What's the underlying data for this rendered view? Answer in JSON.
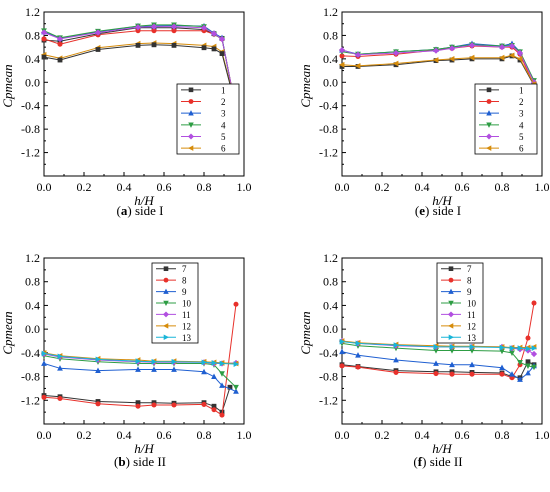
{
  "chart_data": [
    {
      "type": "line",
      "caption_letter": "a",
      "caption_text": "side I",
      "ylabel": "Cpmean",
      "xlabel": "h/H",
      "xlim": [
        0.0,
        1.0
      ],
      "ylim": [
        -1.6,
        1.2
      ],
      "xticks": [
        "0.0",
        "0.2",
        "0.4",
        "0.6",
        "0.8",
        "1.0"
      ],
      "yticks": [
        "1.2",
        "0.8",
        "0.4",
        "0.0",
        "-0.4",
        "-0.8",
        "-1.2"
      ],
      "legend_position": "right",
      "series": [
        {
          "name": "1",
          "color": "#333333",
          "marker": "square",
          "x": [
            0.0,
            0.08,
            0.27,
            0.47,
            0.55,
            0.65,
            0.8,
            0.85,
            0.89,
            0.96
          ],
          "y": [
            0.72,
            0.7,
            0.83,
            0.93,
            0.93,
            0.93,
            0.9,
            0.83,
            0.75,
            -0.46
          ]
        },
        {
          "name": "2",
          "color": "#e8312b",
          "marker": "circle",
          "x": [
            0.0,
            0.08,
            0.27,
            0.47,
            0.55,
            0.65,
            0.8,
            0.85,
            0.89,
            0.96
          ],
          "y": [
            0.74,
            0.65,
            0.81,
            0.88,
            0.88,
            0.88,
            0.88,
            0.82,
            0.74,
            -0.46
          ]
        },
        {
          "name": "3",
          "color": "#1f5fd1",
          "marker": "triangle-up",
          "x": [
            0.0,
            0.08,
            0.27,
            0.47,
            0.55,
            0.65,
            0.8,
            0.85,
            0.89,
            0.96
          ],
          "y": [
            0.86,
            0.75,
            0.86,
            0.96,
            0.96,
            0.97,
            0.96,
            0.84,
            0.76,
            -0.5
          ]
        },
        {
          "name": "4",
          "color": "#2e9d44",
          "marker": "triangle-down",
          "x": [
            0.0,
            0.08,
            0.27,
            0.47,
            0.55,
            0.65,
            0.8,
            0.85,
            0.89,
            0.96
          ],
          "y": [
            0.88,
            0.76,
            0.87,
            0.96,
            0.98,
            0.98,
            0.95,
            0.82,
            0.74,
            -0.48
          ]
        },
        {
          "name": "5",
          "color": "#b14fe0",
          "marker": "diamond",
          "x": [
            0.0,
            0.08,
            0.27,
            0.47,
            0.55,
            0.65,
            0.8,
            0.85,
            0.89,
            0.96
          ],
          "y": [
            0.85,
            0.74,
            0.85,
            0.94,
            0.95,
            0.95,
            0.93,
            0.83,
            0.74,
            -0.46
          ]
        },
        {
          "name": "6",
          "color": "#d68c0b",
          "marker": "triangle-left",
          "x": [
            0.0,
            0.08,
            0.27,
            0.47,
            0.55,
            0.65,
            0.8,
            0.85,
            0.89,
            0.96
          ],
          "y": [
            0.47,
            0.41,
            0.59,
            0.66,
            0.67,
            0.66,
            0.63,
            0.61,
            0.52,
            -0.42
          ]
        },
        {
          "name": "",
          "color": "#333333",
          "marker": "square",
          "x": [
            0.0,
            0.08,
            0.27,
            0.47,
            0.55,
            0.65,
            0.8,
            0.85,
            0.89,
            0.96
          ],
          "y": [
            0.43,
            0.38,
            0.56,
            0.63,
            0.64,
            0.63,
            0.59,
            0.57,
            0.49,
            -0.43
          ]
        }
      ]
    },
    {
      "type": "line",
      "caption_letter": "e",
      "caption_text": "side I",
      "ylabel": "Cpmean",
      "xlabel": "h/H",
      "xlim": [
        0.0,
        1.0
      ],
      "ylim": [
        -1.6,
        1.2
      ],
      "xticks": [
        "0.0",
        "0.2",
        "0.4",
        "0.6",
        "0.8",
        "1.0"
      ],
      "yticks": [
        "1.2",
        "0.8",
        "0.4",
        "0.0",
        "-0.4",
        "-0.8",
        "-1.2"
      ],
      "legend_position": "right",
      "series": [
        {
          "name": "1",
          "color": "#333333",
          "marker": "square",
          "x": [
            0.0,
            0.08,
            0.27,
            0.47,
            0.55,
            0.65,
            0.8,
            0.85,
            0.89,
            0.96
          ],
          "y": [
            0.27,
            0.27,
            0.3,
            0.37,
            0.38,
            0.4,
            0.4,
            0.45,
            0.38,
            -0.05
          ]
        },
        {
          "name": "2",
          "color": "#e8312b",
          "marker": "circle",
          "x": [
            0.0,
            0.08,
            0.27,
            0.47,
            0.55,
            0.65,
            0.8,
            0.85,
            0.89,
            0.96
          ],
          "y": [
            0.45,
            0.44,
            0.48,
            0.55,
            0.58,
            0.62,
            0.6,
            0.6,
            0.48,
            -0.05
          ]
        },
        {
          "name": "3",
          "color": "#1f5fd1",
          "marker": "triangle-up",
          "x": [
            0.0,
            0.08,
            0.27,
            0.47,
            0.55,
            0.65,
            0.8,
            0.85,
            0.89,
            0.96
          ],
          "y": [
            0.55,
            0.48,
            0.52,
            0.56,
            0.6,
            0.66,
            0.62,
            0.66,
            0.52,
            0.02
          ]
        },
        {
          "name": "4",
          "color": "#2e9d44",
          "marker": "triangle-down",
          "x": [
            0.0,
            0.08,
            0.27,
            0.47,
            0.55,
            0.65,
            0.8,
            0.85,
            0.89,
            0.96
          ],
          "y": [
            0.52,
            0.48,
            0.52,
            0.56,
            0.6,
            0.64,
            0.62,
            0.63,
            0.52,
            0.03
          ]
        },
        {
          "name": "5",
          "color": "#b14fe0",
          "marker": "diamond",
          "x": [
            0.0,
            0.08,
            0.27,
            0.47,
            0.55,
            0.65,
            0.8,
            0.85,
            0.89,
            0.96
          ],
          "y": [
            0.55,
            0.47,
            0.5,
            0.54,
            0.58,
            0.63,
            0.6,
            0.62,
            0.5,
            0.0
          ]
        },
        {
          "name": "6",
          "color": "#d68c0b",
          "marker": "triangle-left",
          "x": [
            0.0,
            0.08,
            0.27,
            0.47,
            0.55,
            0.65,
            0.8,
            0.85,
            0.89,
            0.96
          ],
          "y": [
            0.3,
            0.28,
            0.32,
            0.38,
            0.4,
            0.42,
            0.42,
            0.46,
            0.4,
            -0.03
          ]
        }
      ]
    },
    {
      "type": "line",
      "caption_letter": "b",
      "caption_text": "side II",
      "ylabel": "Cpmean",
      "xlabel": "h/H",
      "xlim": [
        0.0,
        1.0
      ],
      "ylim": [
        -1.6,
        1.2
      ],
      "xticks": [
        "0.0",
        "0.2",
        "0.4",
        "0.6",
        "0.8",
        "1.0"
      ],
      "yticks": [
        "1.2",
        "0.8",
        "0.4",
        "0.0",
        "-0.4",
        "-0.8",
        "-1.2"
      ],
      "legend_position": "top-right",
      "series": [
        {
          "name": "7",
          "color": "#333333",
          "marker": "square",
          "x": [
            0.0,
            0.08,
            0.27,
            0.47,
            0.55,
            0.65,
            0.8,
            0.85,
            0.89,
            0.93
          ],
          "y": [
            -1.12,
            -1.14,
            -1.22,
            -1.24,
            -1.24,
            -1.25,
            -1.24,
            -1.3,
            -1.4,
            -0.98
          ]
        },
        {
          "name": "8",
          "color": "#e8312b",
          "marker": "circle",
          "x": [
            0.0,
            0.08,
            0.27,
            0.47,
            0.55,
            0.65,
            0.8,
            0.85,
            0.89,
            0.96
          ],
          "y": [
            -1.15,
            -1.17,
            -1.26,
            -1.3,
            -1.28,
            -1.28,
            -1.27,
            -1.36,
            -1.45,
            0.42
          ]
        },
        {
          "name": "9",
          "color": "#1f5fd1",
          "marker": "triangle-up",
          "x": [
            0.0,
            0.08,
            0.27,
            0.47,
            0.55,
            0.65,
            0.8,
            0.85,
            0.89,
            0.96
          ],
          "y": [
            -0.58,
            -0.66,
            -0.7,
            -0.68,
            -0.68,
            -0.68,
            -0.72,
            -0.8,
            -0.95,
            -1.05
          ]
        },
        {
          "name": "10",
          "color": "#2e9d44",
          "marker": "triangle-down",
          "x": [
            0.0,
            0.08,
            0.27,
            0.47,
            0.55,
            0.65,
            0.8,
            0.85,
            0.89,
            0.96
          ],
          "y": [
            -0.45,
            -0.5,
            -0.55,
            -0.58,
            -0.58,
            -0.58,
            -0.58,
            -0.6,
            -0.75,
            -0.98
          ]
        },
        {
          "name": "11",
          "color": "#b14fe0",
          "marker": "diamond",
          "x": [
            0.0,
            0.08,
            0.27,
            0.47,
            0.55,
            0.65,
            0.8,
            0.85,
            0.89,
            0.96
          ],
          "y": [
            -0.42,
            -0.47,
            -0.52,
            -0.55,
            -0.56,
            -0.56,
            -0.56,
            -0.58,
            -0.58,
            -0.57
          ]
        },
        {
          "name": "12",
          "color": "#d68c0b",
          "marker": "triangle-left",
          "x": [
            0.0,
            0.08,
            0.27,
            0.47,
            0.55,
            0.65,
            0.8,
            0.85,
            0.89,
            0.96
          ],
          "y": [
            -0.4,
            -0.45,
            -0.5,
            -0.52,
            -0.54,
            -0.54,
            -0.55,
            -0.56,
            -0.57,
            -0.58
          ]
        },
        {
          "name": "13",
          "color": "#19b5d8",
          "marker": "triangle-right",
          "x": [
            0.0,
            0.08,
            0.27,
            0.47,
            0.55,
            0.65,
            0.8,
            0.85,
            0.89,
            0.96
          ],
          "y": [
            -0.41,
            -0.46,
            -0.51,
            -0.54,
            -0.55,
            -0.55,
            -0.56,
            -0.57,
            -0.58,
            -0.59
          ]
        }
      ]
    },
    {
      "type": "line",
      "caption_letter": "f",
      "caption_text": "side II",
      "ylabel": "Cpmean",
      "xlabel": "h/H",
      "xlim": [
        0.0,
        1.0
      ],
      "ylim": [
        -1.6,
        1.2
      ],
      "xticks": [
        "0.0",
        "0.2",
        "0.4",
        "0.6",
        "0.8",
        "1.0"
      ],
      "yticks": [
        "1.2",
        "0.8",
        "0.4",
        "0.0",
        "-0.4",
        "-0.8",
        "-1.2"
      ],
      "legend_position": "top-right",
      "series": [
        {
          "name": "7",
          "color": "#333333",
          "marker": "square",
          "x": [
            0.0,
            0.08,
            0.27,
            0.47,
            0.55,
            0.65,
            0.8,
            0.85,
            0.89,
            0.93,
            0.96
          ],
          "y": [
            -0.6,
            -0.63,
            -0.7,
            -0.72,
            -0.72,
            -0.73,
            -0.74,
            -0.8,
            -0.82,
            -0.55,
            -0.6
          ]
        },
        {
          "name": "8",
          "color": "#e8312b",
          "marker": "circle",
          "x": [
            0.0,
            0.08,
            0.27,
            0.47,
            0.55,
            0.65,
            0.8,
            0.85,
            0.89,
            0.93,
            0.96
          ],
          "y": [
            -0.62,
            -0.64,
            -0.73,
            -0.75,
            -0.76,
            -0.76,
            -0.76,
            -0.82,
            -0.6,
            -0.15,
            0.44
          ]
        },
        {
          "name": "9",
          "color": "#1f5fd1",
          "marker": "triangle-up",
          "x": [
            0.0,
            0.08,
            0.27,
            0.47,
            0.55,
            0.65,
            0.8,
            0.85,
            0.89,
            0.93,
            0.96
          ],
          "y": [
            -0.38,
            -0.44,
            -0.52,
            -0.58,
            -0.6,
            -0.6,
            -0.65,
            -0.76,
            -0.85,
            -0.74,
            -0.62
          ]
        },
        {
          "name": "10",
          "color": "#2e9d44",
          "marker": "triangle-down",
          "x": [
            0.0,
            0.08,
            0.27,
            0.47,
            0.55,
            0.65,
            0.8,
            0.85,
            0.89,
            0.93,
            0.96
          ],
          "y": [
            -0.24,
            -0.28,
            -0.32,
            -0.36,
            -0.36,
            -0.36,
            -0.37,
            -0.4,
            -0.56,
            -0.62,
            -0.64
          ]
        },
        {
          "name": "11",
          "color": "#b14fe0",
          "marker": "diamond",
          "x": [
            0.0,
            0.08,
            0.27,
            0.47,
            0.55,
            0.65,
            0.8,
            0.85,
            0.89,
            0.93,
            0.96
          ],
          "y": [
            -0.2,
            -0.24,
            -0.28,
            -0.3,
            -0.3,
            -0.3,
            -0.3,
            -0.32,
            -0.34,
            -0.36,
            -0.42
          ]
        },
        {
          "name": "12",
          "color": "#d68c0b",
          "marker": "triangle-left",
          "x": [
            0.0,
            0.08,
            0.27,
            0.47,
            0.55,
            0.65,
            0.8,
            0.85,
            0.89,
            0.93,
            0.96
          ],
          "y": [
            -0.2,
            -0.23,
            -0.26,
            -0.28,
            -0.29,
            -0.29,
            -0.3,
            -0.31,
            -0.31,
            -0.31,
            -0.3
          ]
        },
        {
          "name": "13",
          "color": "#19b5d8",
          "marker": "triangle-right",
          "x": [
            0.0,
            0.08,
            0.27,
            0.47,
            0.55,
            0.65,
            0.8,
            0.85,
            0.89,
            0.93,
            0.96
          ],
          "y": [
            -0.21,
            -0.24,
            -0.27,
            -0.3,
            -0.3,
            -0.3,
            -0.31,
            -0.32,
            -0.32,
            -0.33,
            -0.32
          ]
        }
      ]
    }
  ]
}
